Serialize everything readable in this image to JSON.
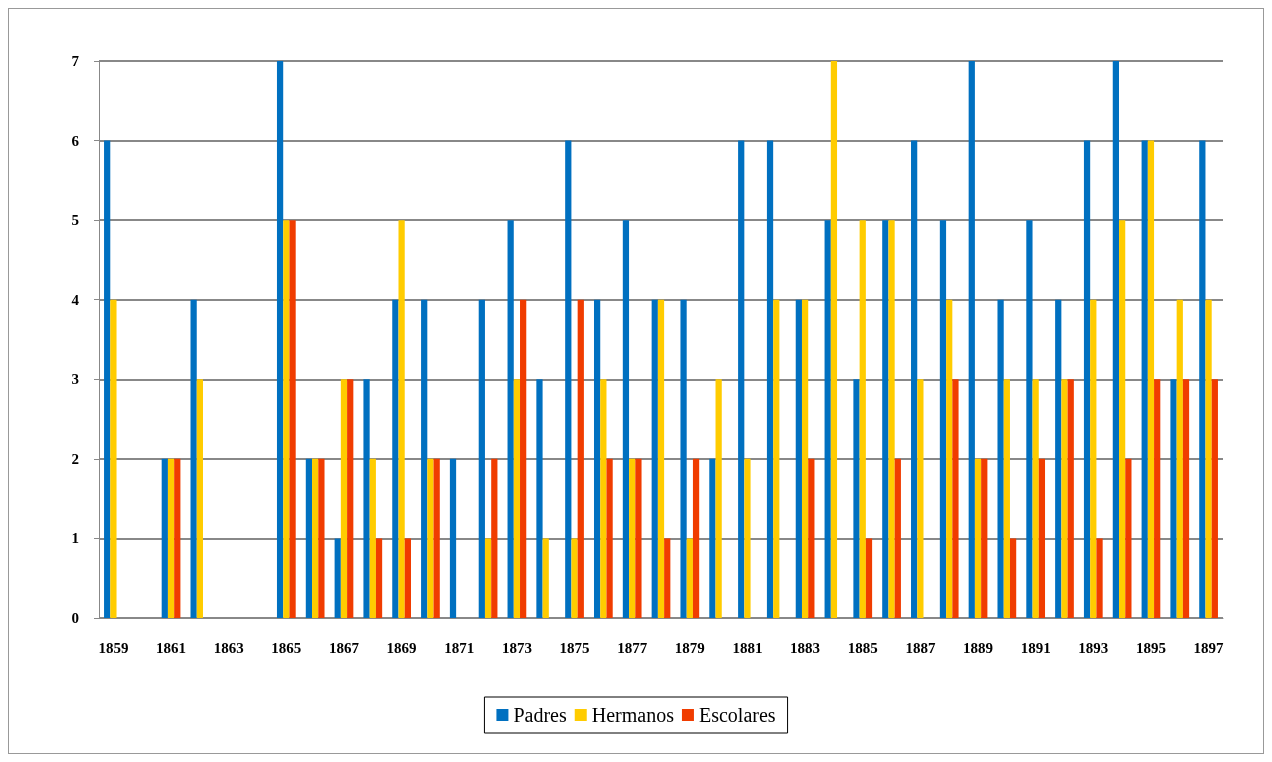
{
  "chart_data": {
    "type": "bar",
    "categories": [
      "1859",
      null,
      "1861",
      null,
      "1863",
      null,
      "1865",
      null,
      "1867",
      null,
      "1869",
      null,
      "1871",
      null,
      "1873",
      null,
      "1875",
      null,
      "1877",
      null,
      "1879",
      null,
      "1881",
      null,
      "1883",
      null,
      "1885",
      null,
      "1887",
      null,
      "1889",
      null,
      "1891",
      null,
      "1893",
      null,
      "1895",
      null,
      "1897"
    ],
    "series": [
      {
        "name": "Padres",
        "color": "#0070c0",
        "values": [
          6,
          0,
          2,
          4,
          0,
          0,
          7,
          2,
          1,
          3,
          4,
          4,
          2,
          4,
          5,
          3,
          6,
          4,
          5,
          4,
          4,
          2,
          6,
          6,
          4,
          5,
          3,
          5,
          6,
          5,
          7,
          4,
          5,
          4,
          6,
          7,
          6,
          3,
          6
        ]
      },
      {
        "name": "Hermanos",
        "color": "#ffcc00",
        "values": [
          4,
          0,
          2,
          3,
          0,
          0,
          5,
          2,
          3,
          2,
          5,
          2,
          0,
          1,
          3,
          1,
          1,
          3,
          2,
          4,
          1,
          3,
          2,
          4,
          4,
          7,
          5,
          5,
          3,
          4,
          2,
          3,
          3,
          3,
          4,
          5,
          6,
          4,
          4
        ]
      },
      {
        "name": "Escolares",
        "color": "#f03c00",
        "values": [
          0,
          0,
          2,
          0,
          0,
          0,
          5,
          2,
          3,
          1,
          1,
          2,
          0,
          2,
          4,
          0,
          4,
          2,
          2,
          1,
          2,
          0,
          0,
          0,
          2,
          0,
          1,
          2,
          0,
          3,
          2,
          1,
          2,
          3,
          1,
          2,
          3,
          3,
          3
        ]
      }
    ],
    "ylim": [
      0,
      7
    ],
    "yticks": [
      0,
      1,
      2,
      3,
      4,
      5,
      6,
      7
    ],
    "grid": "y",
    "legend": "bottom"
  }
}
